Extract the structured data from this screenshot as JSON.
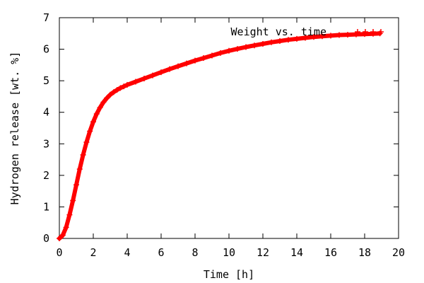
{
  "chart_data": {
    "type": "line",
    "title": "",
    "xlabel": "Time [h]",
    "ylabel": "Hydrogen release [wt. %]",
    "xlim": [
      0,
      20
    ],
    "ylim": [
      0,
      7
    ],
    "xticks": [
      "0",
      "2",
      "4",
      "6",
      "8",
      "10",
      "12",
      "14",
      "16",
      "18",
      "20"
    ],
    "yticks": [
      "0",
      "1",
      "2",
      "3",
      "4",
      "5",
      "6",
      "7"
    ],
    "grid": false,
    "legend_position": "top-right",
    "marker": "plus",
    "series": [
      {
        "name": "Weight vs. time",
        "color": "#ff0000",
        "x": [
          0,
          0.2,
          0.4,
          0.6,
          0.8,
          1.0,
          1.2,
          1.4,
          1.6,
          1.8,
          2.0,
          2.2,
          2.4,
          2.6,
          2.8,
          3.0,
          3.2,
          3.4,
          3.6,
          3.8,
          4.0,
          4.5,
          5.0,
          5.5,
          6.0,
          6.5,
          7.0,
          7.5,
          8.0,
          8.5,
          9.0,
          9.5,
          10.0,
          10.5,
          11.0,
          11.5,
          12.0,
          12.5,
          13.0,
          13.5,
          14.0,
          14.5,
          15.0,
          15.5,
          16.0,
          16.5,
          17.0,
          17.5,
          18.0,
          18.5,
          18.9
        ],
        "y": [
          0,
          0.1,
          0.35,
          0.75,
          1.2,
          1.7,
          2.2,
          2.65,
          3.05,
          3.4,
          3.7,
          3.95,
          4.15,
          4.32,
          4.45,
          4.56,
          4.64,
          4.71,
          4.77,
          4.82,
          4.87,
          4.97,
          5.07,
          5.17,
          5.27,
          5.37,
          5.46,
          5.55,
          5.64,
          5.72,
          5.8,
          5.88,
          5.95,
          6.01,
          6.07,
          6.12,
          6.17,
          6.22,
          6.26,
          6.3,
          6.33,
          6.36,
          6.39,
          6.41,
          6.43,
          6.45,
          6.46,
          6.47,
          6.48,
          6.49,
          6.5
        ]
      }
    ]
  }
}
